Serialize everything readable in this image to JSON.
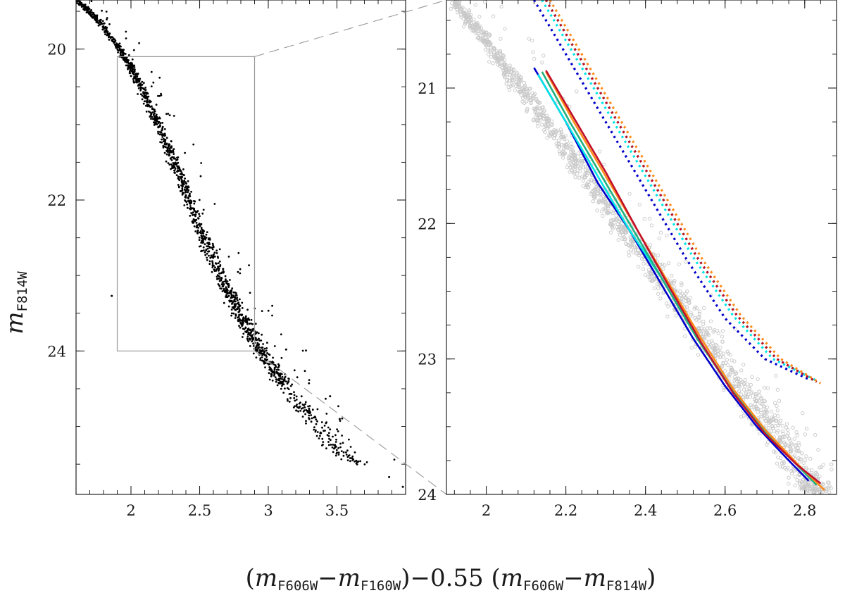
{
  "figure": {
    "xlabel_parts": {
      "open1": "(",
      "m1": "m",
      "sub1": "F606W",
      "minus1": "−",
      "m2": "m",
      "sub2": "F160W",
      "close1": ")",
      "mid": "−0.55  (",
      "m3": "m",
      "sub3": "F606W",
      "minus2": "−",
      "m4": "m",
      "sub4": "F814W",
      "close2": ")"
    },
    "ylabel_parts": {
      "m": "m",
      "sub": "F814W"
    }
  },
  "chart_data": [
    {
      "type": "scatter",
      "panel": "left",
      "title": "",
      "xlabel": "(mF606W−mF160W)−0.55 (mF606W−mF814W)",
      "ylabel": "mF814W",
      "xlim": [
        1.6,
        4.0
      ],
      "ylim": [
        25.9,
        19.35
      ],
      "y_inverted": true,
      "xticks": [
        2,
        2.5,
        3,
        3.5
      ],
      "xtick_labels": [
        "2",
        "2.5",
        "3",
        "3.5"
      ],
      "yticks": [
        20,
        22,
        24
      ],
      "ytick_labels": [
        "20",
        "22",
        "24"
      ],
      "marker_color": "#000000",
      "ridge_line": {
        "x": [
          1.6,
          1.75,
          1.9,
          2.0,
          2.1,
          2.2,
          2.3,
          2.4,
          2.5,
          2.6,
          2.7,
          2.8,
          2.9,
          3.0,
          3.1,
          3.2,
          3.3,
          3.4,
          3.5,
          3.65
        ],
        "y": [
          19.35,
          19.6,
          19.95,
          20.25,
          20.6,
          21.0,
          21.45,
          21.9,
          22.35,
          22.8,
          23.2,
          23.55,
          23.85,
          24.15,
          24.4,
          24.65,
          24.85,
          25.05,
          25.3,
          25.5
        ]
      },
      "outliers": {
        "x": [
          1.86,
          3.13,
          3.88,
          3.98,
          3.52,
          3.45
        ],
        "y": [
          23.27,
          23.98,
          25.67,
          25.8,
          24.9,
          24.6
        ]
      },
      "zoom_box": {
        "x": [
          1.9,
          2.9
        ],
        "y": [
          20.1,
          24.0
        ]
      }
    },
    {
      "type": "scatter",
      "panel": "right",
      "title": "",
      "xlim": [
        1.9,
        2.88
      ],
      "ylim": [
        24.0,
        20.35
      ],
      "y_inverted": true,
      "xticks": [
        2,
        2.2,
        2.4,
        2.6,
        2.8
      ],
      "xtick_labels": [
        "2",
        "2.2",
        "2.4",
        "2.6",
        "2.8"
      ],
      "yticks": [
        21,
        22,
        23,
        24
      ],
      "ytick_labels": [
        "21",
        "22",
        "23",
        "24"
      ],
      "marker_color": "#c8c8c8",
      "ridge_line": {
        "x": [
          1.9,
          2.0,
          2.1,
          2.2,
          2.3,
          2.4,
          2.5,
          2.6,
          2.7,
          2.8,
          2.85
        ],
        "y": [
          20.3,
          20.65,
          21.05,
          21.45,
          21.85,
          22.25,
          22.65,
          23.05,
          23.45,
          23.85,
          24.0
        ]
      },
      "isochrones": [
        {
          "style": "solid",
          "color": "#0000cc",
          "x": [
            2.12,
            2.2,
            2.28,
            2.36,
            2.44,
            2.52,
            2.6,
            2.68,
            2.76,
            2.81
          ],
          "y": [
            20.85,
            21.25,
            21.7,
            22.05,
            22.45,
            22.85,
            23.2,
            23.5,
            23.75,
            23.9
          ]
        },
        {
          "style": "solid",
          "color": "#00e6e6",
          "x": [
            2.13,
            2.2,
            2.28,
            2.36,
            2.44,
            2.52,
            2.6,
            2.68,
            2.76,
            2.83
          ],
          "y": [
            20.9,
            21.25,
            21.65,
            22.05,
            22.4,
            22.8,
            23.15,
            23.45,
            23.72,
            23.93
          ]
        },
        {
          "style": "solid",
          "color": "#20b080",
          "x": [
            2.14,
            2.21,
            2.29,
            2.37,
            2.45,
            2.53,
            2.61,
            2.69,
            2.77,
            2.83
          ],
          "y": [
            20.88,
            21.25,
            21.65,
            22.05,
            22.45,
            22.85,
            23.2,
            23.5,
            23.75,
            23.93
          ]
        },
        {
          "style": "solid",
          "color": "#ff8c1a",
          "x": [
            2.15,
            2.22,
            2.3,
            2.38,
            2.46,
            2.54,
            2.62,
            2.7,
            2.78,
            2.85
          ],
          "y": [
            20.88,
            21.25,
            21.65,
            22.05,
            22.45,
            22.85,
            23.22,
            23.52,
            23.77,
            23.97
          ]
        },
        {
          "style": "solid",
          "color": "#c0102a",
          "x": [
            2.15,
            2.22,
            2.3,
            2.38,
            2.46,
            2.54,
            2.62,
            2.7,
            2.78,
            2.84
          ],
          "y": [
            20.87,
            21.22,
            21.62,
            22.05,
            22.47,
            22.88,
            23.25,
            23.55,
            23.78,
            23.92
          ]
        },
        {
          "style": "dotted",
          "color": "#0000cc",
          "x": [
            2.12,
            2.2,
            2.3,
            2.4,
            2.5,
            2.6,
            2.7,
            2.81
          ],
          "y": [
            20.35,
            20.75,
            21.25,
            21.75,
            22.25,
            22.7,
            23.0,
            23.15
          ]
        },
        {
          "style": "dotted",
          "color": "#00e6e6",
          "x": [
            2.14,
            2.22,
            2.32,
            2.42,
            2.52,
            2.62,
            2.72,
            2.83
          ],
          "y": [
            20.35,
            20.75,
            21.25,
            21.75,
            22.25,
            22.68,
            23.0,
            23.16
          ]
        },
        {
          "style": "dotted",
          "color": "#20b080",
          "x": [
            2.15,
            2.23,
            2.33,
            2.43,
            2.53,
            2.63,
            2.73,
            2.83
          ],
          "y": [
            20.35,
            20.75,
            21.25,
            21.75,
            22.25,
            22.68,
            23.0,
            23.17
          ]
        },
        {
          "style": "dotted",
          "color": "#ff8c1a",
          "x": [
            2.16,
            2.24,
            2.34,
            2.44,
            2.54,
            2.64,
            2.74,
            2.84
          ],
          "y": [
            20.35,
            20.75,
            21.25,
            21.75,
            22.25,
            22.68,
            23.0,
            23.18
          ]
        },
        {
          "style": "dotted",
          "color": "#c0102a",
          "x": [
            2.15,
            2.23,
            2.33,
            2.43,
            2.53,
            2.63,
            2.73,
            2.83
          ],
          "y": [
            20.35,
            20.75,
            21.25,
            21.75,
            22.25,
            22.68,
            23.0,
            23.17
          ]
        }
      ]
    }
  ]
}
